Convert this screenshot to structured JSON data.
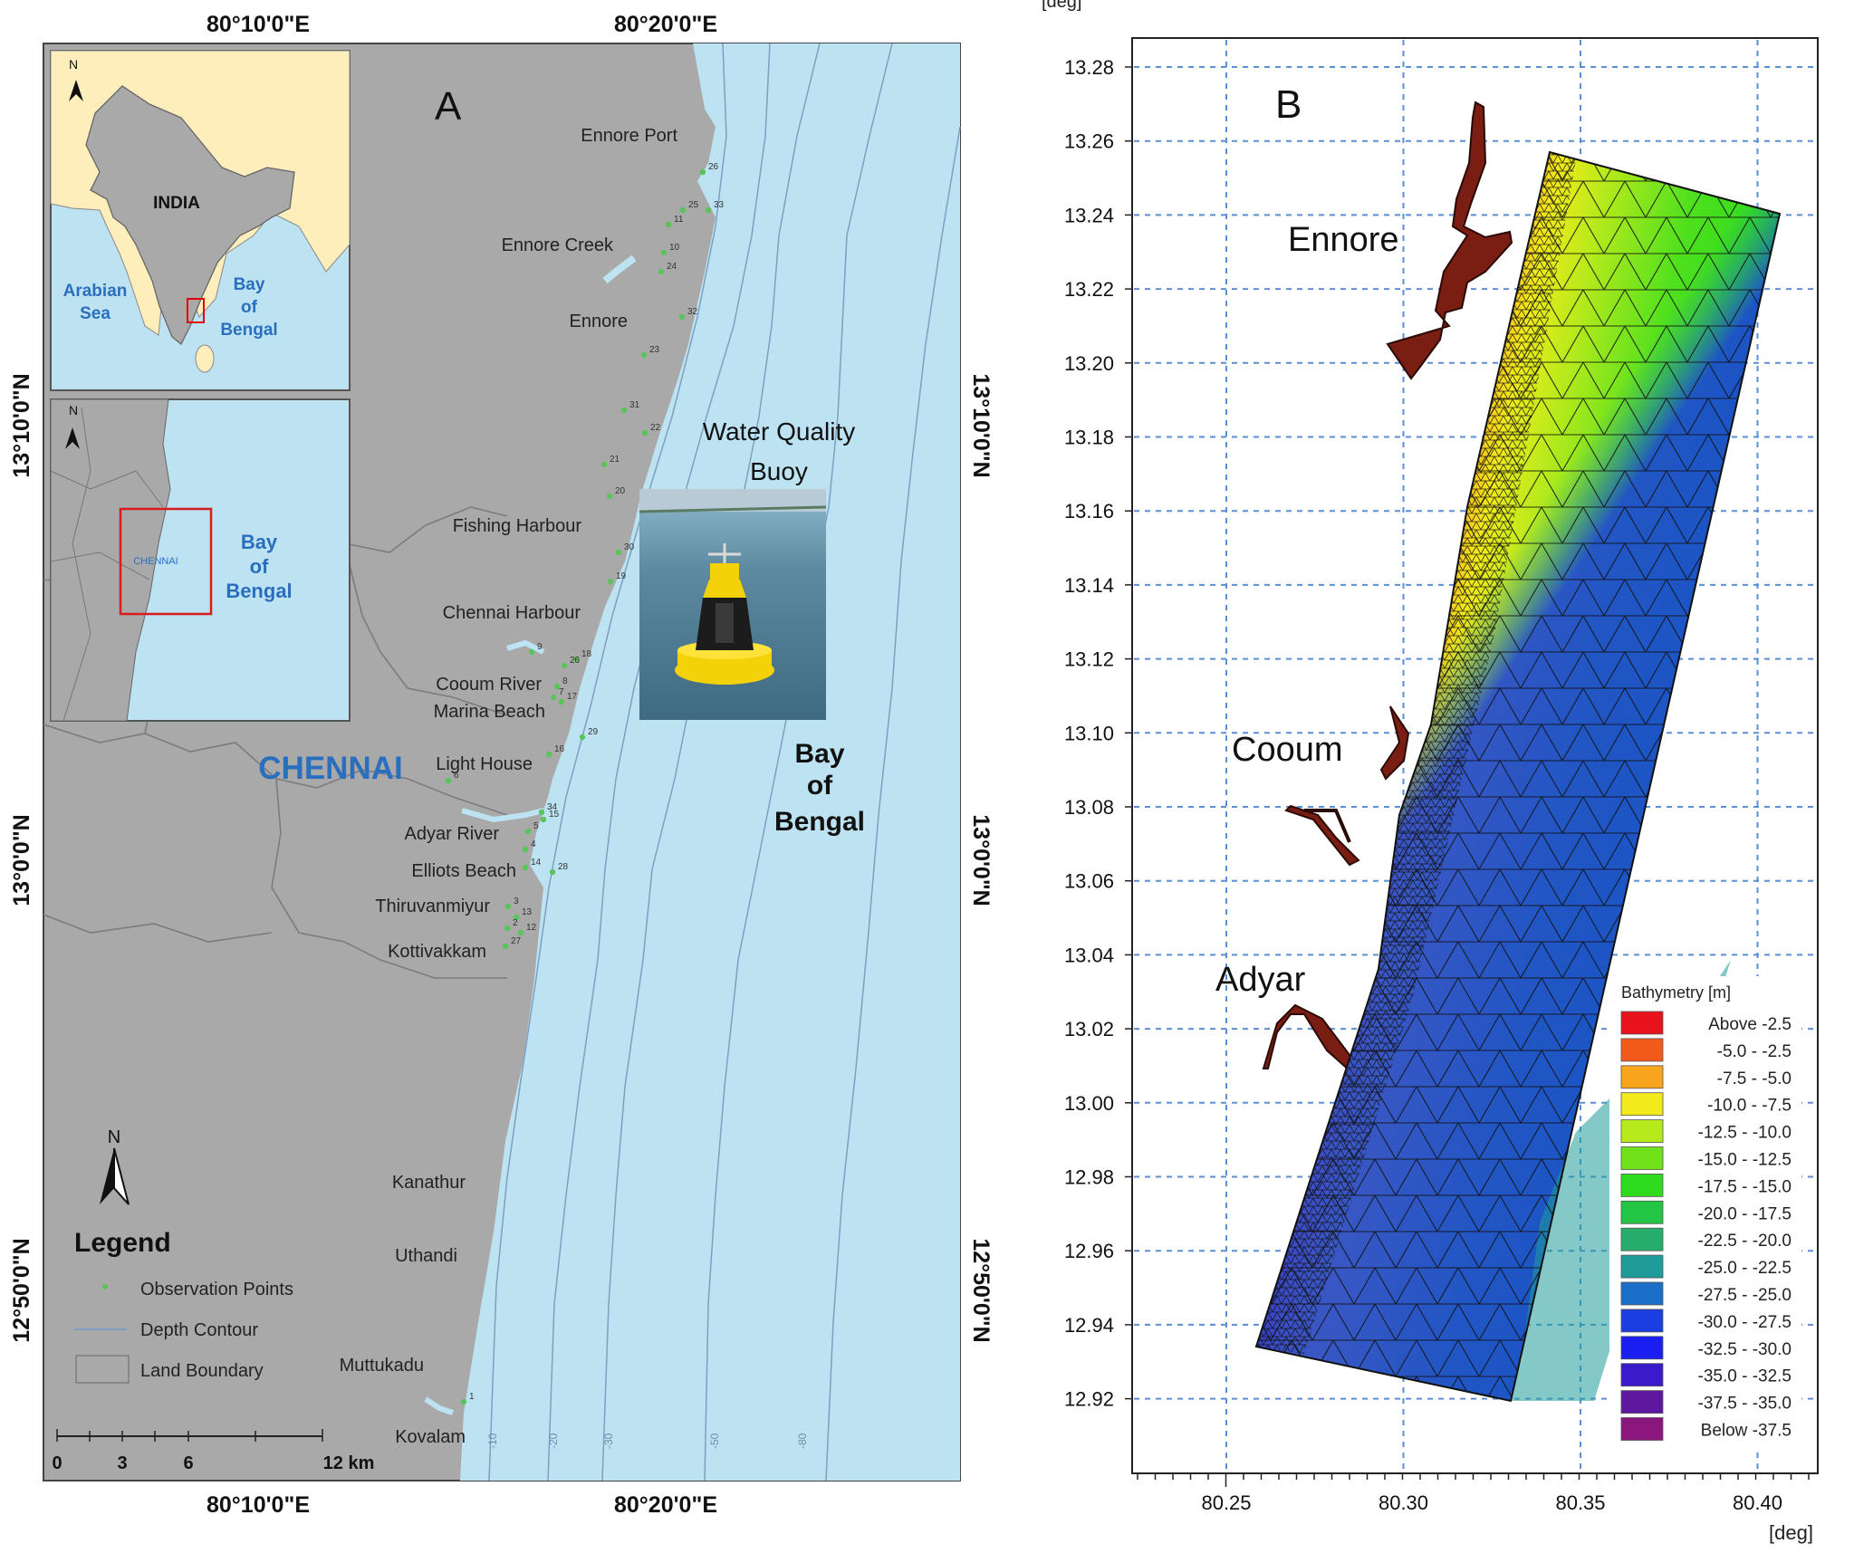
{
  "panel_a": {
    "label": "A",
    "lon_labels_top": [
      "80°10'0\"E",
      "80°20'0\"E"
    ],
    "lon_labels_bottom": [
      "80°10'0\"E",
      "80°20'0\"E"
    ],
    "lat_labels": [
      "13°10'0\"N",
      "13°0'0\"N",
      "12°50'0\"N"
    ],
    "city_label": "CHENNAI",
    "sea_label": [
      "Bay",
      "of",
      "Bengal"
    ],
    "buoy_title": [
      "Water Quality",
      "Buoy"
    ],
    "inset_top": {
      "country": "INDIA",
      "arabian_sea": [
        "Arabian",
        "Sea"
      ],
      "bay": [
        "Bay",
        "of",
        "Bengal"
      ],
      "north": "N"
    },
    "inset_bottom": {
      "city": "CHENNAI",
      "bay": [
        "Bay",
        "of",
        "Bengal"
      ],
      "north": "N"
    },
    "places": [
      "Ennore Port",
      "Ennore Creek",
      "Ennore",
      "Fishing Harbour",
      "Chennai Harbour",
      "Cooum River",
      "Marina Beach",
      "Light House",
      "Adyar River",
      "Elliots Beach",
      "Thiruvanmiyur",
      "Kottivakkam",
      "Kanathur",
      "Uthandi",
      "Muttukadu",
      "Kovalam"
    ],
    "observation_point_ids": [
      "26",
      "33",
      "11",
      "25",
      "10",
      "24",
      "32",
      "23",
      "31",
      "22",
      "21",
      "20",
      "30",
      "19",
      "9",
      "18",
      "26",
      "8",
      "7",
      "17",
      "29",
      "16",
      "6",
      "34",
      "5",
      "15",
      "4",
      "14",
      "28",
      "3",
      "13",
      "2",
      "12",
      "27",
      "1"
    ],
    "contour_labels": [
      "-10",
      "-20",
      "-30",
      "-50",
      "-80"
    ],
    "north": "N",
    "legend": {
      "title": "Legend",
      "items": [
        "Observation Points",
        "Depth Contour",
        "Land Boundary"
      ]
    },
    "scalebar": {
      "ticks": [
        "0",
        "3",
        "6",
        "12 km"
      ]
    }
  },
  "panel_b": {
    "label": "B",
    "y_unit": "[deg]",
    "x_unit": "[deg]",
    "y_ticks": [
      "13.28",
      "13.26",
      "13.24",
      "13.22",
      "13.20",
      "13.18",
      "13.16",
      "13.14",
      "13.12",
      "13.10",
      "13.08",
      "13.06",
      "13.04",
      "13.02",
      "13.00",
      "12.98",
      "12.96",
      "12.94",
      "12.92"
    ],
    "x_ticks": [
      "80.25",
      "80.30",
      "80.35",
      "80.40"
    ],
    "places": [
      "Ennore",
      "Cooum",
      "Adyar"
    ],
    "legend_title": "Bathymetry [m]",
    "legend": [
      {
        "label": "Above  -2.5",
        "color": "#e8131a"
      },
      {
        "label": "-5.0 -  -2.5",
        "color": "#f25a1b"
      },
      {
        "label": "-7.5 -  -5.0",
        "color": "#f8a41c"
      },
      {
        "label": "-10.0 -  -7.5",
        "color": "#f2ea1a"
      },
      {
        "label": "-12.5 - -10.0",
        "color": "#b7ea1c"
      },
      {
        "label": "-15.0 - -12.5",
        "color": "#6fe21a"
      },
      {
        "label": "-17.5 - -15.0",
        "color": "#2fdb1e"
      },
      {
        "label": "-20.0 - -17.5",
        "color": "#22c544"
      },
      {
        "label": "-22.5 - -20.0",
        "color": "#26ad6c"
      },
      {
        "label": "-25.0 - -22.5",
        "color": "#1f9c9a"
      },
      {
        "label": "-27.5 - -25.0",
        "color": "#1c6fc9"
      },
      {
        "label": "-30.0 - -27.5",
        "color": "#1a3ee0"
      },
      {
        "label": "-32.5 - -30.0",
        "color": "#1a1ef0"
      },
      {
        "label": "-35.0 - -32.5",
        "color": "#3a1acb"
      },
      {
        "label": "-37.5 - -35.0",
        "color": "#5e189f"
      },
      {
        "label": "Below  -37.5",
        "color": "#8a167e"
      }
    ]
  }
}
